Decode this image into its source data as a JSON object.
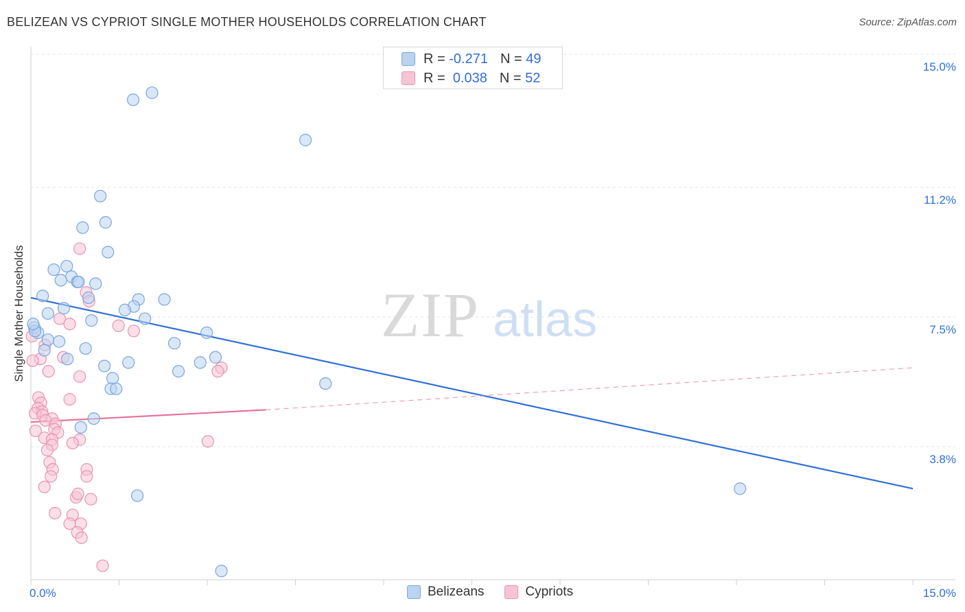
{
  "header": {
    "title": "BELIZEAN VS CYPRIOT SINGLE MOTHER HOUSEHOLDS CORRELATION CHART",
    "source": "Source: ZipAtlas.com"
  },
  "watermark": {
    "zip": "ZIP",
    "atlas": "atlas"
  },
  "legend_top": {
    "rows": [
      {
        "r_label": "R =",
        "r_value": "-0.271",
        "n_label": "N =",
        "n_value": "49"
      },
      {
        "r_label": "R =",
        "r_value": "0.038",
        "n_label": "N =",
        "n_value": "52"
      }
    ]
  },
  "legend_bottom": {
    "items": [
      "Belizeans",
      "Cypriots"
    ]
  },
  "colors": {
    "blue_fill": "#b9d3f1",
    "blue_stroke": "#7aa6dc",
    "blue_line": "#2f6fd6",
    "pink_fill": "#f6c5d5",
    "pink_stroke": "#e993b1",
    "pink_line": "#e57399",
    "tick_text": "#2f6fd6",
    "grid": "#e3e3e3"
  },
  "chart_data": {
    "type": "scatter",
    "title": "BELIZEAN VS CYPRIOT SINGLE MOTHER HOUSEHOLDS CORRELATION CHART",
    "xlabel": "",
    "ylabel": "Single Mother Households",
    "xlim": [
      0,
      15
    ],
    "ylim": [
      0,
      15.0
    ],
    "x_tick_labels": [
      "0.0%",
      "15.0%"
    ],
    "y_ticks": [
      3.8,
      7.5,
      11.2,
      15.0
    ],
    "y_tick_labels": [
      "3.8%",
      "7.5%",
      "11.2%",
      "15.0%"
    ],
    "grid": true,
    "legend_position": "top-center",
    "series": [
      {
        "name": "Belizeans",
        "R": -0.271,
        "N": 49,
        "trend": {
          "x": [
            0.0,
            15.0
          ],
          "y": [
            8.05,
            2.6
          ]
        },
        "points": [
          [
            1.74,
            13.7
          ],
          [
            2.06,
            13.9
          ],
          [
            4.67,
            12.55
          ],
          [
            1.18,
            10.95
          ],
          [
            1.27,
            10.2
          ],
          [
            0.88,
            10.05
          ],
          [
            1.31,
            9.35
          ],
          [
            0.61,
            8.95
          ],
          [
            0.39,
            8.85
          ],
          [
            0.69,
            8.65
          ],
          [
            0.51,
            8.55
          ],
          [
            0.79,
            8.5
          ],
          [
            1.1,
            8.45
          ],
          [
            0.81,
            8.5
          ],
          [
            0.2,
            8.1
          ],
          [
            0.98,
            8.05
          ],
          [
            1.83,
            8.0
          ],
          [
            2.27,
            8.0
          ],
          [
            1.75,
            7.8
          ],
          [
            1.6,
            7.7
          ],
          [
            0.56,
            7.75
          ],
          [
            0.29,
            7.6
          ],
          [
            1.03,
            7.4
          ],
          [
            1.94,
            7.45
          ],
          [
            0.06,
            7.2
          ],
          [
            0.12,
            7.05
          ],
          [
            0.07,
            7.1
          ],
          [
            2.99,
            7.05
          ],
          [
            0.48,
            6.8
          ],
          [
            0.29,
            6.85
          ],
          [
            2.44,
            6.75
          ],
          [
            0.93,
            6.6
          ],
          [
            0.23,
            6.55
          ],
          [
            3.14,
            6.35
          ],
          [
            1.66,
            6.2
          ],
          [
            1.25,
            6.1
          ],
          [
            2.88,
            6.2
          ],
          [
            2.51,
            5.95
          ],
          [
            0.62,
            6.3
          ],
          [
            1.39,
            5.75
          ],
          [
            5.01,
            5.6
          ],
          [
            1.36,
            5.45
          ],
          [
            1.45,
            5.45
          ],
          [
            1.07,
            4.6
          ],
          [
            0.85,
            4.35
          ],
          [
            12.06,
            2.6
          ],
          [
            1.81,
            2.4
          ],
          [
            3.24,
            0.25
          ],
          [
            0.04,
            7.3
          ]
        ]
      },
      {
        "name": "Cypriots",
        "R": 0.038,
        "N": 52,
        "trend": {
          "x": [
            0.0,
            4.0
          ],
          "y": [
            4.5,
            4.85
          ]
        },
        "trend_extension": {
          "x": [
            4.0,
            15.0
          ],
          "y": [
            4.85,
            6.05
          ]
        },
        "points": [
          [
            0.83,
            9.45
          ],
          [
            0.94,
            8.2
          ],
          [
            0.99,
            7.95
          ],
          [
            0.49,
            7.45
          ],
          [
            1.49,
            7.25
          ],
          [
            0.66,
            7.3
          ],
          [
            1.75,
            7.1
          ],
          [
            0.24,
            6.7
          ],
          [
            0.55,
            6.35
          ],
          [
            0.16,
            6.3
          ],
          [
            0.03,
            6.25
          ],
          [
            3.24,
            6.05
          ],
          [
            3.18,
            5.95
          ],
          [
            0.3,
            5.95
          ],
          [
            0.83,
            5.8
          ],
          [
            0.13,
            5.2
          ],
          [
            0.66,
            5.15
          ],
          [
            0.17,
            5.05
          ],
          [
            0.12,
            4.9
          ],
          [
            0.19,
            4.8
          ],
          [
            0.07,
            4.75
          ],
          [
            0.2,
            4.7
          ],
          [
            0.36,
            4.6
          ],
          [
            0.25,
            4.55
          ],
          [
            0.42,
            4.45
          ],
          [
            0.4,
            4.3
          ],
          [
            0.08,
            4.25
          ],
          [
            0.46,
            4.2
          ],
          [
            0.23,
            4.05
          ],
          [
            0.36,
            4.0
          ],
          [
            0.83,
            4.0
          ],
          [
            0.71,
            3.9
          ],
          [
            3.01,
            3.95
          ],
          [
            0.36,
            3.85
          ],
          [
            0.28,
            3.7
          ],
          [
            0.32,
            3.35
          ],
          [
            0.37,
            3.15
          ],
          [
            0.95,
            3.15
          ],
          [
            0.95,
            2.95
          ],
          [
            0.34,
            2.95
          ],
          [
            0.23,
            2.65
          ],
          [
            0.77,
            2.35
          ],
          [
            0.8,
            2.45
          ],
          [
            1.02,
            2.3
          ],
          [
            0.41,
            1.9
          ],
          [
            0.71,
            1.85
          ],
          [
            0.66,
            1.6
          ],
          [
            0.85,
            1.6
          ],
          [
            0.79,
            1.35
          ],
          [
            0.86,
            1.2
          ],
          [
            1.22,
            0.4
          ],
          [
            0.02,
            6.95
          ]
        ]
      }
    ]
  }
}
